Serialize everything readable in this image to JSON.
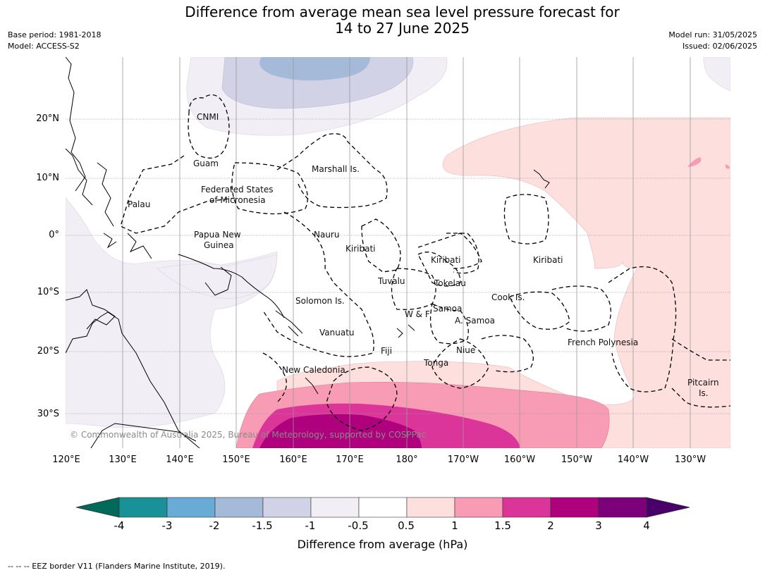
{
  "title_line1": "Difference from average mean sea level pressure forecast for",
  "title_line2": "14 to 27 June 2025",
  "meta_left": {
    "base_period": "Base period: 1981-2018",
    "model": "Model: ACCESS-S2"
  },
  "meta_right": {
    "model_run": "Model run: 31/05/2025",
    "issued": "Issued: 02/06/2025"
  },
  "map": {
    "lat_ticks": [
      "20°N",
      "10°N",
      "0°",
      "10°S",
      "20°S",
      "30°S"
    ],
    "lon_ticks": [
      "120°E",
      "130°E",
      "140°E",
      "150°E",
      "160°E",
      "170°E",
      "180°",
      "170°W",
      "160°W",
      "150°W",
      "140°W",
      "130°W"
    ],
    "regions": {
      "cnmi": "CNMI",
      "guam": "Guam",
      "marshall": "Marshall Is.",
      "palau": "Palau",
      "fsm_1": "Federated States",
      "fsm_2": "of Micronesia",
      "png_1": "Papua New",
      "png_2": "Guinea",
      "nauru": "Nauru",
      "kiribati_w": "Kiribati",
      "kiribati_c": "Kiribati",
      "kiribati_e": "Kiribati",
      "tuvalu": "Tuvalu",
      "tokelau": "Tokelau",
      "solomon": "Solomon Is.",
      "wf": "W & F",
      "samoa": "Samoa",
      "asamoa": "A. Samoa",
      "cook": "Cook Is.",
      "vanuatu": "Vanuatu",
      "fiji": "Fiji",
      "niue": "Niue",
      "tonga": "Tonga",
      "frenchpoly": "French Polynesia",
      "newcal": "New Caledonia",
      "pitcairn_1": "Pitcairn",
      "pitcairn_2": "Is."
    },
    "copyright": "© Commonwealth of Australia 2025, Bureau of Meteorology, supported by COSPPac"
  },
  "colorbar": {
    "labels": [
      "-4",
      "-3",
      "-2",
      "-1.5",
      "-1",
      "-0.5",
      "0.5",
      "1",
      "1.5",
      "2",
      "3",
      "4"
    ],
    "colors": {
      "below": "#006a5a",
      "c1": "#1a9196",
      "c2": "#68abd6",
      "c3": "#a5bad9",
      "c4": "#d2d2e6",
      "c5": "#f2eef5",
      "c6": "#ffffff",
      "c7": "#fde0de",
      "c8": "#f89cb6",
      "c9": "#dc359a",
      "c10": "#af007d",
      "c11": "#7b007a",
      "above": "#4a006a"
    },
    "title": "Difference from average (hPa)"
  },
  "footer": "--  --  -- EEZ border V11 (Flanders Marine Institute, 2019)."
}
